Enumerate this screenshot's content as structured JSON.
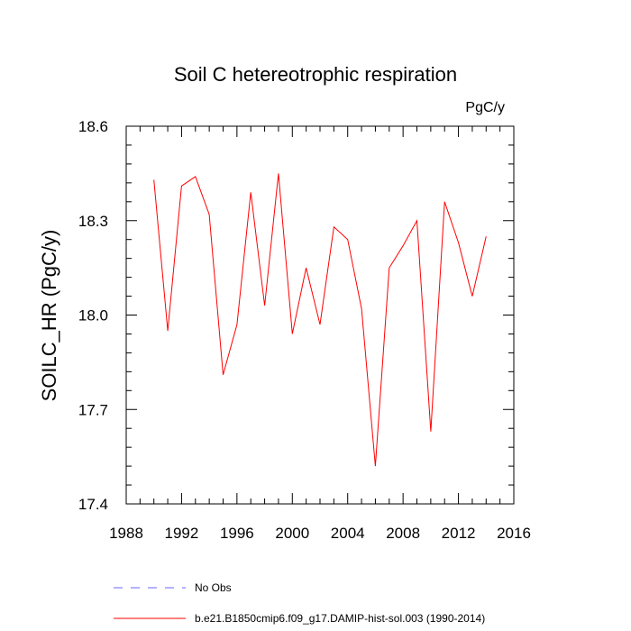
{
  "chart_data": {
    "type": "line",
    "title": "Soil C hetereotrophic respiration",
    "units": "PgC/y",
    "ylabel": "SOILC_HR  (PgC/y)",
    "xlabel": "",
    "xlim": [
      1988,
      2016
    ],
    "ylim": [
      17.4,
      18.6
    ],
    "x_ticks": [
      1988,
      1992,
      1996,
      2000,
      2004,
      2008,
      2012,
      2016
    ],
    "y_ticks": [
      17.4,
      17.7,
      18.0,
      18.3,
      18.6
    ],
    "x_tick_labels": [
      "1988",
      "1992",
      "1996",
      "2000",
      "2004",
      "2008",
      "2012",
      "2016"
    ],
    "y_tick_labels": [
      "17.4",
      "17.7",
      "18.0",
      "18.3",
      "18.6"
    ],
    "grid": false,
    "legend_position": "bottom",
    "series": [
      {
        "name": "b.e21.B1850cmip6.f09_g17.DAMIP-hist-sol.003 (1990-2014)",
        "color": "#ff0000",
        "style": "solid",
        "x": [
          1990,
          1991,
          1992,
          1993,
          1994,
          1995,
          1996,
          1997,
          1998,
          1999,
          2000,
          2001,
          2002,
          2003,
          2004,
          2005,
          2006,
          2007,
          2008,
          2009,
          2010,
          2011,
          2012,
          2013,
          2014
        ],
        "values": [
          18.43,
          17.95,
          18.41,
          18.44,
          18.32,
          17.81,
          17.97,
          18.39,
          18.03,
          18.45,
          17.94,
          18.15,
          17.97,
          18.28,
          18.24,
          18.02,
          17.52,
          18.15,
          18.22,
          18.3,
          17.63,
          18.36,
          18.23,
          18.06,
          18.25
        ]
      }
    ],
    "legend": [
      {
        "label": "No Obs",
        "color": "#6666ff",
        "style": "dashed"
      },
      {
        "label": "b.e21.B1850cmip6.f09_g17.DAMIP-hist-sol.003 (1990-2014)",
        "color": "#ff0000",
        "style": "solid"
      }
    ]
  }
}
